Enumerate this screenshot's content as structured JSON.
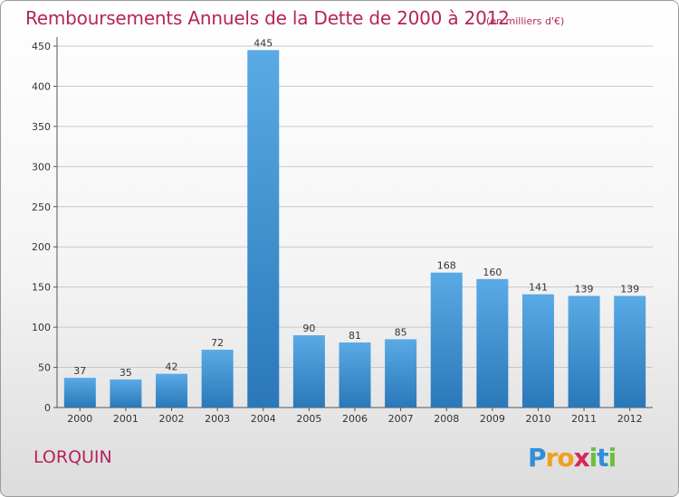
{
  "chart_data": {
    "type": "bar",
    "title": "Remboursements Annuels de la Dette de 2000 à 2012",
    "unit_note": "(en milliers d'€)",
    "categories": [
      "2000",
      "2001",
      "2002",
      "2003",
      "2004",
      "2005",
      "2006",
      "2007",
      "2008",
      "2009",
      "2010",
      "2011",
      "2012"
    ],
    "values": [
      37,
      35,
      42,
      72,
      445,
      90,
      81,
      85,
      168,
      160,
      141,
      139,
      139
    ],
    "ylim": [
      0,
      450
    ],
    "yticks": [
      0,
      50,
      100,
      150,
      200,
      250,
      300,
      350,
      400,
      450
    ],
    "grid": "horizontal",
    "colors": {
      "bar_top": "#5aaae6",
      "bar_bottom": "#2a78b8",
      "title": "#b5245c",
      "grid": "#c8c8c8"
    }
  },
  "commune": "LORQUIN",
  "logo": {
    "text": "Proxiti",
    "letters": [
      {
        "ch": "P",
        "color": "#2f8fd8"
      },
      {
        "ch": "r",
        "color": "#f0a020"
      },
      {
        "ch": "o",
        "color": "#f0a020"
      },
      {
        "ch": "x",
        "color": "#d6285a"
      },
      {
        "ch": "i",
        "color": "#6cbf3c"
      },
      {
        "ch": "t",
        "color": "#2f8fd8"
      },
      {
        "ch": "i",
        "color": "#6cbf3c"
      }
    ]
  }
}
